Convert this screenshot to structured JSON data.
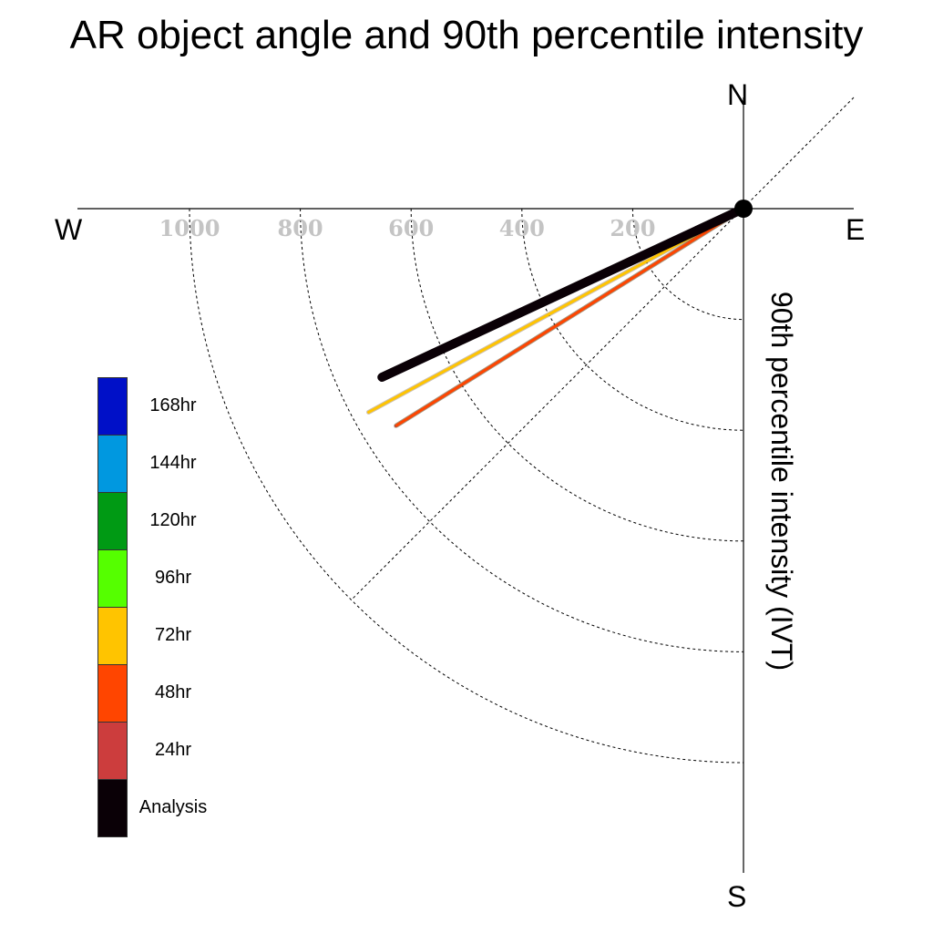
{
  "chart_data": {
    "type": "polar-vector",
    "title": "AR object angle and 90th percentile intensity",
    "radial_axis_label": "90th percentile intensity (IVT)",
    "radial_range": [
      0,
      1200
    ],
    "radial_ticks": [
      200,
      400,
      600,
      800,
      1000
    ],
    "radial_tick_labels": [
      "200",
      "400",
      "600",
      "800",
      "1000"
    ],
    "compass": {
      "north": "N",
      "south": "S",
      "east": "E",
      "west": "W"
    },
    "grid": true,
    "legend_position": "left",
    "series": [
      {
        "name": "24hr",
        "color": "#CC3D3D",
        "angle_deg": 238,
        "magnitude": 740
      },
      {
        "name": "48hr",
        "color": "#FF4500",
        "angle_deg": 238,
        "magnitude": 738
      },
      {
        "name": "72hr",
        "color": "#FFC400",
        "angle_deg": 241.5,
        "magnitude": 770
      },
      {
        "name": "Analysis",
        "color": "#0A0006",
        "angle_deg": 245,
        "magnitude": 720
      }
    ],
    "legend": [
      {
        "label": "168hr",
        "color": "#0010C8"
      },
      {
        "label": "144hr",
        "color": "#0098E0"
      },
      {
        "label": "120hr",
        "color": "#009A14"
      },
      {
        "label": "96hr",
        "color": "#55FF00"
      },
      {
        "label": "72hr",
        "color": "#FFC400"
      },
      {
        "label": "48hr",
        "color": "#FF4500"
      },
      {
        "label": "24hr",
        "color": "#CC3D3D"
      },
      {
        "label": "Analysis",
        "color": "#0A0006"
      }
    ]
  }
}
